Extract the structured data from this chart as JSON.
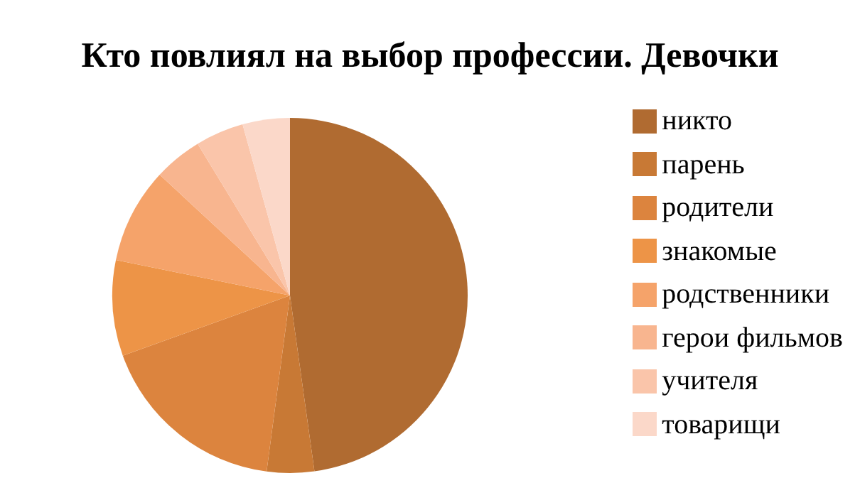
{
  "chart_data": {
    "type": "pie",
    "title": "Кто повлиял на выбор профессии. Девочки",
    "categories": [
      "никто",
      "парень",
      "родители",
      "знакомые",
      "родственники",
      "герои фильмов",
      "учителя",
      "товарищи"
    ],
    "values": [
      47.8,
      4.3,
      17.4,
      8.7,
      8.7,
      4.4,
      4.4,
      4.3
    ],
    "colors": [
      "#b06b31",
      "#c87935",
      "#dc843e",
      "#ed9447",
      "#f5a36a",
      "#f8b58f",
      "#fac5aa",
      "#fbd8c9"
    ],
    "legend": "right"
  }
}
